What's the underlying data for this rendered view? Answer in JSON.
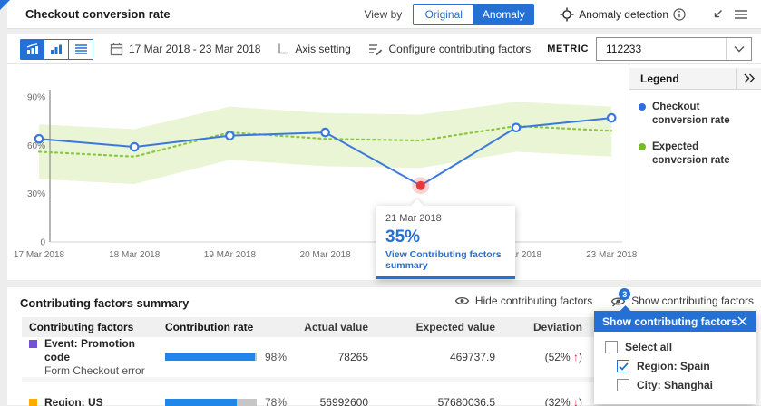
{
  "header": {
    "title": "Checkout conversion rate",
    "view_by_label": "View by",
    "view_toggle": {
      "options": [
        "Original",
        "Anomaly"
      ],
      "selected": "Anomaly"
    },
    "anomaly_detection_label": "Anomaly detection"
  },
  "toolbar": {
    "date_range": "17 Mar 2018 - 23 Mar 2018",
    "axis_setting_label": "Axis setting",
    "configure_label": "Configure contributing factors",
    "metric_label": "METRIC",
    "metric_value": "112233"
  },
  "legend": {
    "title": "Legend",
    "items": [
      {
        "label": "Checkout conversion rate",
        "color": "#2f6de0"
      },
      {
        "label": "Expected conversion rate",
        "color": "#74bc1f"
      }
    ]
  },
  "chart_data": {
    "type": "line",
    "x": [
      "17 Mar 2018",
      "18 Mar 2018",
      "19 MAr 2018",
      "20 Mar 2018",
      "21 Mar 2018",
      "22 Mar 2018",
      "23 Mar 2018"
    ],
    "series": [
      {
        "name": "Checkout conversion rate",
        "values": [
          64,
          59,
          66,
          68,
          35,
          71,
          77
        ],
        "color": "#3b78dd",
        "style": "solid",
        "markers": true
      },
      {
        "name": "Expected conversion rate",
        "values": [
          56,
          53,
          68,
          64,
          63,
          72,
          69
        ],
        "color": "#8cc63f",
        "style": "dotted",
        "markers": false
      }
    ],
    "band": {
      "upper": [
        73,
        70,
        84,
        80,
        79,
        87,
        84
      ],
      "lower": [
        39,
        36,
        51,
        47,
        46,
        56,
        53
      ],
      "color": "#e9f5d5"
    },
    "anomaly": {
      "x_index": 4,
      "value": 35,
      "color": "#e23b3b"
    },
    "yticks": [
      {
        "label": "90%",
        "value": 90
      },
      {
        "label": "60%",
        "value": 60
      },
      {
        "label": "30%",
        "value": 30
      },
      {
        "label": "0",
        "value": 0
      }
    ],
    "ylim": [
      0,
      97
    ],
    "grid": false,
    "legend_position": "right"
  },
  "tooltip": {
    "date": "21 Mar 2018",
    "value": "35%",
    "link": "View Contributing factors summary"
  },
  "factors": {
    "title": "Contributing factors summary",
    "hide_label": "Hide contributing factors",
    "show_label": "Show contributing factors",
    "show_badge": "3",
    "columns": [
      "Contributing factors",
      "Contribution rate",
      "Actual value",
      "Expected value",
      "Deviation"
    ],
    "rows": [
      {
        "name": "Event: Promotion code",
        "sub": "Form Checkout error",
        "color": "#7352d8",
        "rate": 98,
        "rate_label": "98%",
        "actual": "78265",
        "expected": "469737.9",
        "deviation": "(52%",
        "arrow": "↑",
        "deviation_close": ")"
      },
      {
        "name": "Region: US",
        "sub": "",
        "color": "#ffab00",
        "rate": 78,
        "rate_label": "78%",
        "actual": "56992600",
        "expected": "57680036.5",
        "deviation": "(32%",
        "arrow": "↓",
        "deviation_close": ")"
      }
    ]
  },
  "popup": {
    "title": "Show contributing factors",
    "options": [
      {
        "label": "Select all",
        "checked": false,
        "indent": false
      },
      {
        "label": "Region: Spain",
        "checked": true,
        "indent": true
      },
      {
        "label": "City: Shanghai",
        "checked": false,
        "indent": true
      }
    ]
  }
}
